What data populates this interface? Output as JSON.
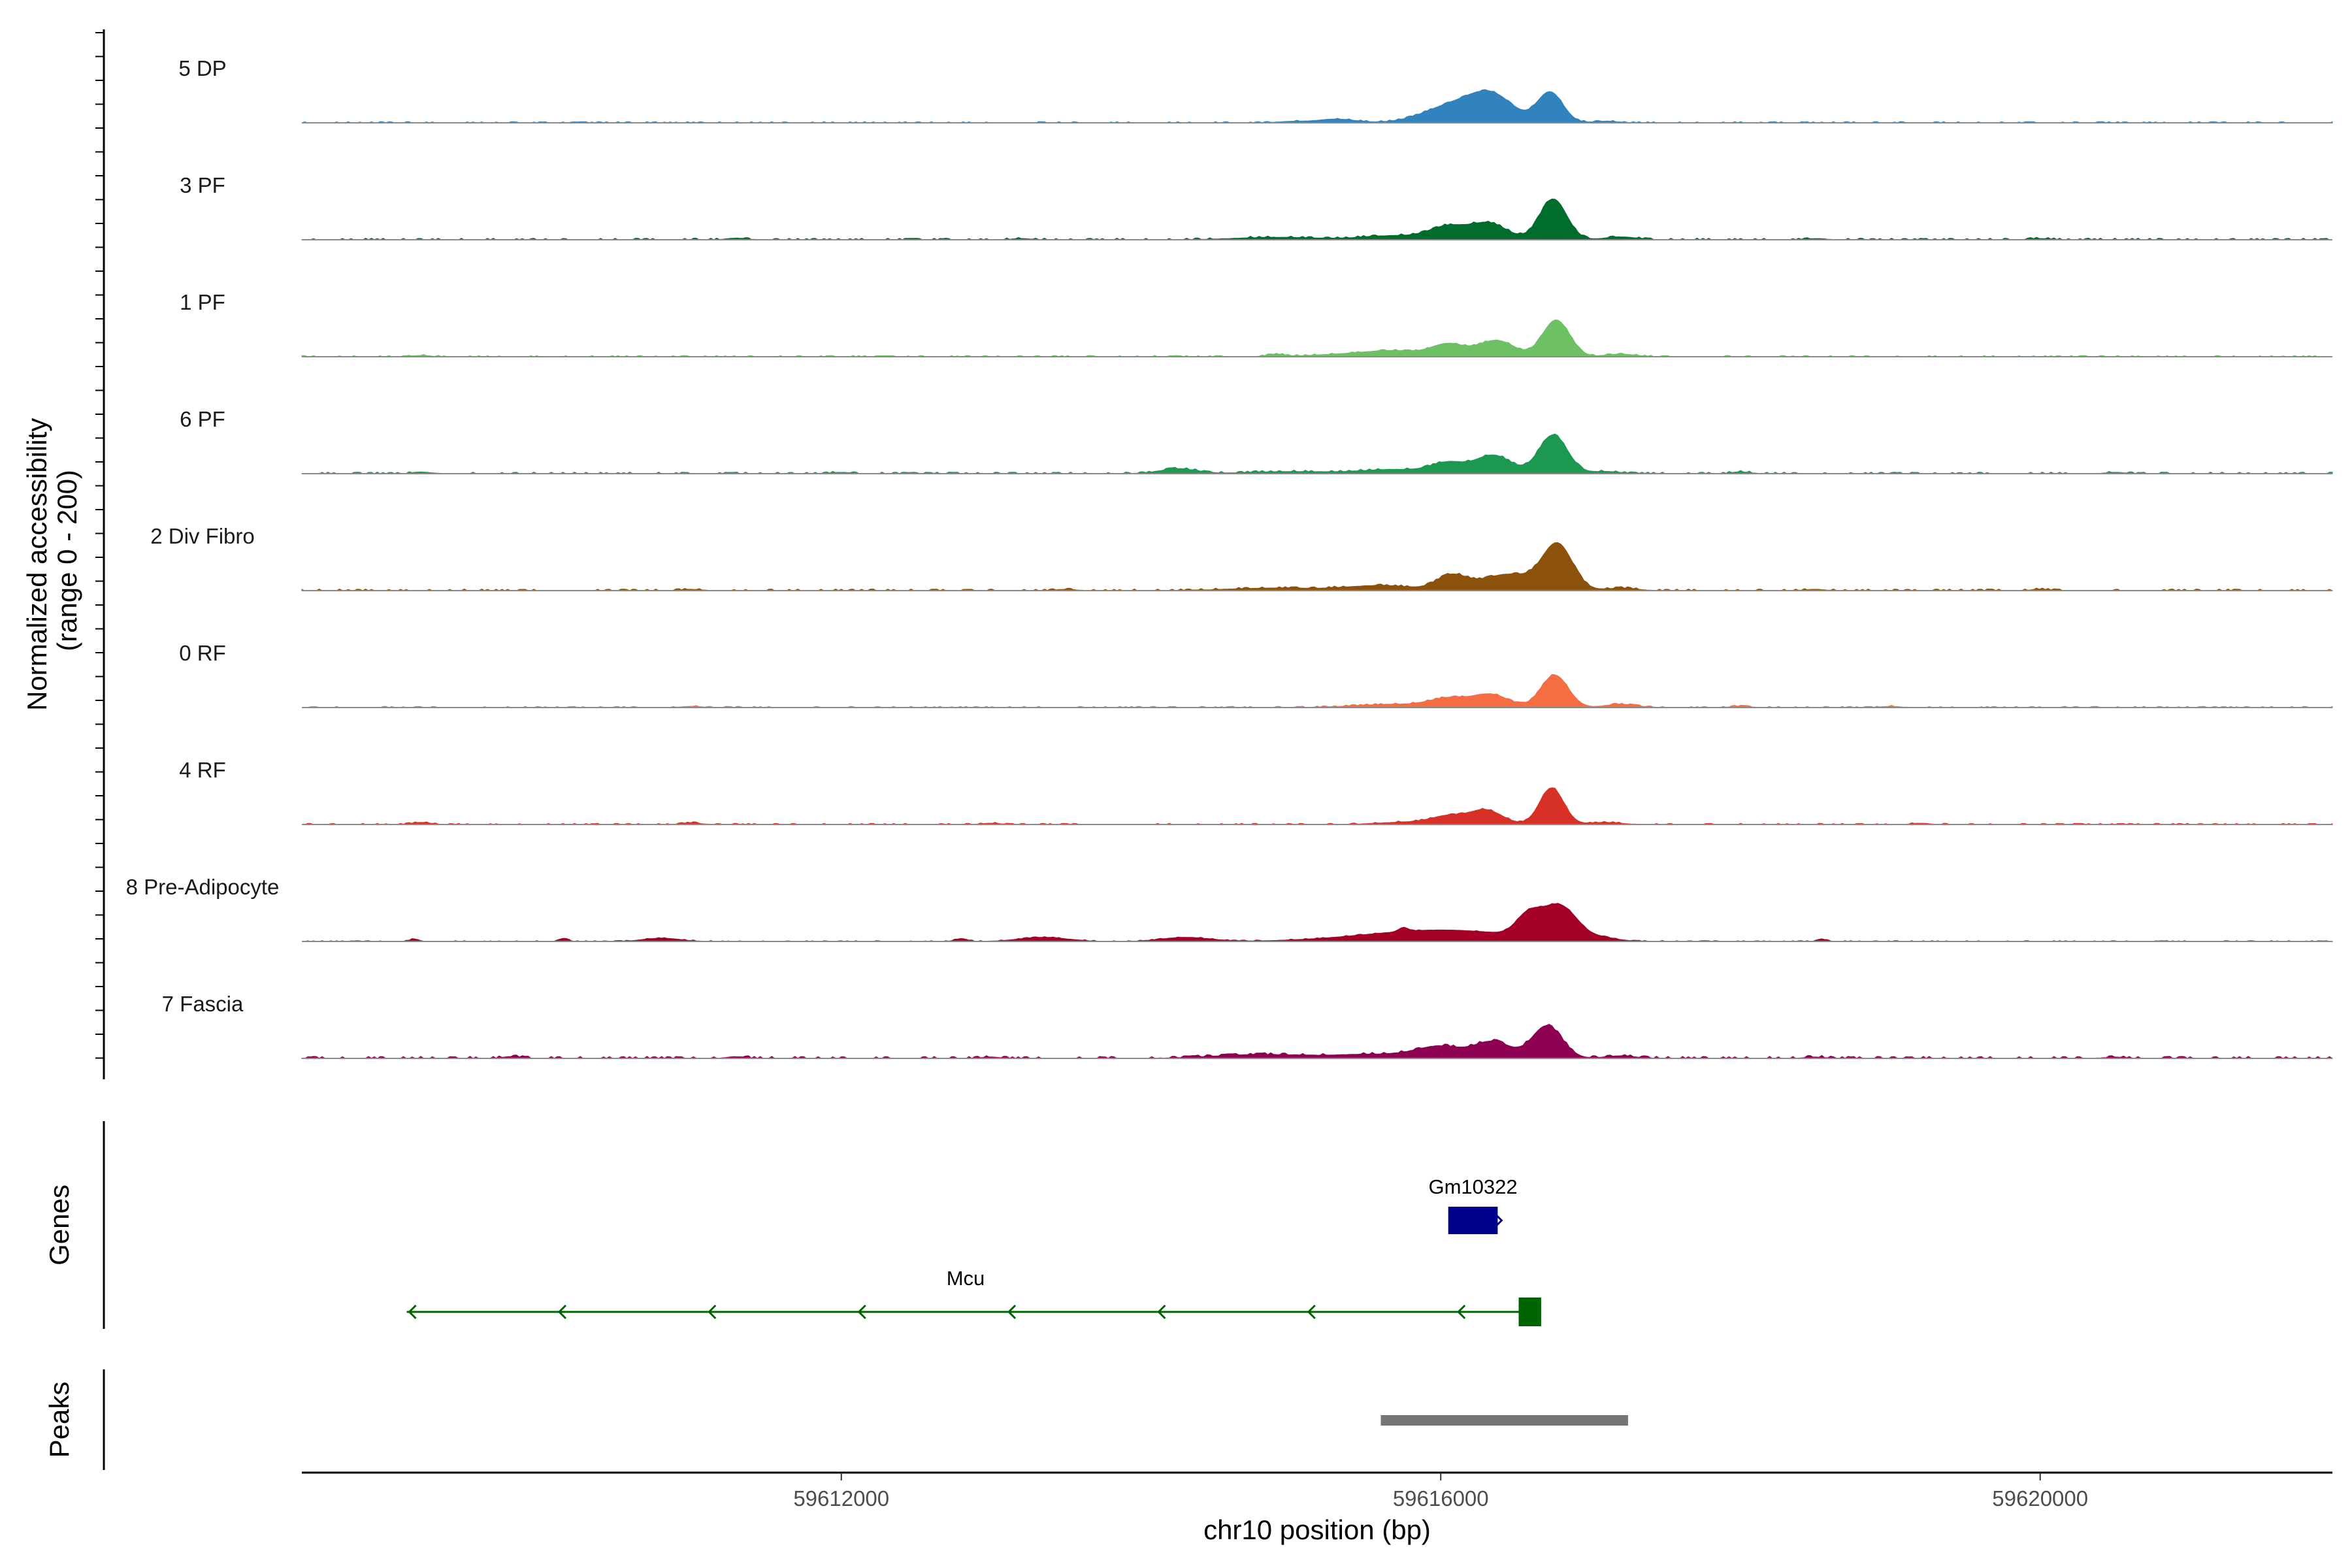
{
  "chart_data": {
    "type": "area",
    "ylabel": "Normalized accessibility\n(range 0 - 200)",
    "xlabel": "chr10 position (bp)",
    "xlim": [
      59608400,
      59621950
    ],
    "ylim": [
      0,
      200
    ],
    "x_ticks": [
      {
        "value": 59612000,
        "label": "59612000"
      },
      {
        "value": 59616000,
        "label": "59616000"
      },
      {
        "value": 59620000,
        "label": "59620000"
      }
    ],
    "series": [
      {
        "name": "5 DP",
        "color": "#3182bd",
        "noise": 3,
        "bumps": [],
        "peaks": [
          [
            59615000,
            90,
            3
          ],
          [
            59615300,
            130,
            9
          ],
          [
            59616100,
            200,
            45
          ],
          [
            59616350,
            140,
            55
          ],
          [
            59616730,
            85,
            75
          ],
          [
            59617100,
            80,
            4
          ]
        ]
      },
      {
        "name": "3 PF",
        "color": "#006d2c",
        "noise": 4,
        "bumps": [
          [
            59611300,
            4
          ],
          [
            59613200,
            3
          ],
          [
            59618500,
            3
          ],
          [
            59620000,
            3
          ]
        ],
        "peaks": [
          [
            59614900,
            260,
            6
          ],
          [
            59615700,
            220,
            10
          ],
          [
            59616050,
            120,
            30
          ],
          [
            59616320,
            120,
            40
          ],
          [
            59616750,
            90,
            100
          ],
          [
            59617200,
            100,
            7
          ]
        ]
      },
      {
        "name": "1 PF",
        "color": "#6dc064",
        "noise": 3,
        "bumps": [
          [
            59609200,
            3
          ],
          [
            59614900,
            5
          ]
        ],
        "peaks": [
          [
            59615400,
            250,
            6
          ],
          [
            59615700,
            180,
            12
          ],
          [
            59616050,
            110,
            30
          ],
          [
            59616370,
            120,
            40
          ],
          [
            59616770,
            90,
            90
          ],
          [
            59617200,
            100,
            6
          ]
        ]
      },
      {
        "name": "6 PF",
        "color": "#1d9850",
        "noise": 4,
        "bumps": [
          [
            59609200,
            4
          ],
          [
            59612000,
            3
          ],
          [
            59618000,
            4
          ],
          [
            59620500,
            3
          ]
        ],
        "peaks": [
          [
            59614250,
            120,
            12
          ],
          [
            59615000,
            280,
            5
          ],
          [
            59615700,
            220,
            10
          ],
          [
            59616050,
            110,
            25
          ],
          [
            59616350,
            120,
            45
          ],
          [
            59616750,
            95,
            95
          ],
          [
            59617100,
            100,
            5
          ]
        ]
      },
      {
        "name": "2 Div Fibro",
        "color": "#8c510a",
        "noise": 4,
        "bumps": [
          [
            59611000,
            3
          ],
          [
            59613500,
            3
          ],
          [
            59618500,
            3
          ],
          [
            59620000,
            3
          ]
        ],
        "peaks": [
          [
            59614900,
            300,
            6
          ],
          [
            59615600,
            220,
            12
          ],
          [
            59616070,
            100,
            35
          ],
          [
            59616450,
            180,
            40
          ],
          [
            59616780,
            100,
            110
          ],
          [
            59617200,
            100,
            6
          ]
        ]
      },
      {
        "name": "0 RF",
        "color": "#f46d43",
        "noise": 3,
        "bumps": [
          [
            59611000,
            3
          ],
          [
            59618000,
            3
          ],
          [
            59619000,
            3
          ]
        ],
        "peaks": [
          [
            59615700,
            260,
            8
          ],
          [
            59616050,
            120,
            20
          ],
          [
            59616330,
            120,
            32
          ],
          [
            59616760,
            90,
            80
          ],
          [
            59617200,
            100,
            8
          ]
        ]
      },
      {
        "name": "4 RF",
        "color": "#d73027",
        "noise": 3,
        "bumps": [
          [
            59609200,
            5
          ],
          [
            59611000,
            4
          ],
          [
            59613000,
            3
          ],
          [
            59619200,
            3
          ]
        ],
        "peaks": [
          [
            59615800,
            200,
            6
          ],
          [
            59616050,
            110,
            18
          ],
          [
            59616300,
            110,
            35
          ],
          [
            59616740,
            80,
            90
          ],
          [
            59617100,
            100,
            5
          ]
        ]
      },
      {
        "name": "8 Pre-Adipocyte",
        "color": "#a50026",
        "noise": 2,
        "bumps": [],
        "peaks": [
          [
            59609150,
            30,
            6
          ],
          [
            59610150,
            30,
            6
          ],
          [
            59610800,
            120,
            8
          ],
          [
            59612800,
            40,
            7
          ],
          [
            59613350,
            160,
            10
          ],
          [
            59614300,
            160,
            10
          ],
          [
            59615750,
            30,
            10
          ],
          [
            59616000,
            500,
            28
          ],
          [
            59616580,
            80,
            45
          ],
          [
            59616790,
            120,
            82
          ],
          [
            59617100,
            80,
            6
          ],
          [
            59618550,
            30,
            5
          ]
        ]
      },
      {
        "name": "7 Fascia",
        "color": "#8e0152",
        "noise": 5,
        "bumps": [
          [
            59609800,
            4
          ],
          [
            59611300,
            4
          ],
          [
            59613000,
            3
          ],
          [
            59618500,
            3
          ],
          [
            59620500,
            3
          ]
        ],
        "peaks": [
          [
            59614800,
            300,
            9
          ],
          [
            59615600,
            300,
            10
          ],
          [
            59616000,
            150,
            26
          ],
          [
            59616350,
            120,
            40
          ],
          [
            59616710,
            100,
            80
          ],
          [
            59617200,
            100,
            6
          ]
        ]
      }
    ],
    "genes_track": {
      "label": "Genes",
      "genes": [
        {
          "name": "Gm10322",
          "start": 59616050,
          "end": 59616380,
          "strand": "+",
          "color": "#00008b"
        },
        {
          "name": "Mcu",
          "start": 59609100,
          "end": 59616670,
          "strand": "-",
          "color": "#006400",
          "exon_start": 59616520,
          "exon_end": 59616670
        }
      ]
    },
    "peaks_track": {
      "label": "Peaks",
      "peaks": [
        {
          "start": 59615600,
          "end": 59617250,
          "color": "#757575"
        }
      ]
    }
  }
}
